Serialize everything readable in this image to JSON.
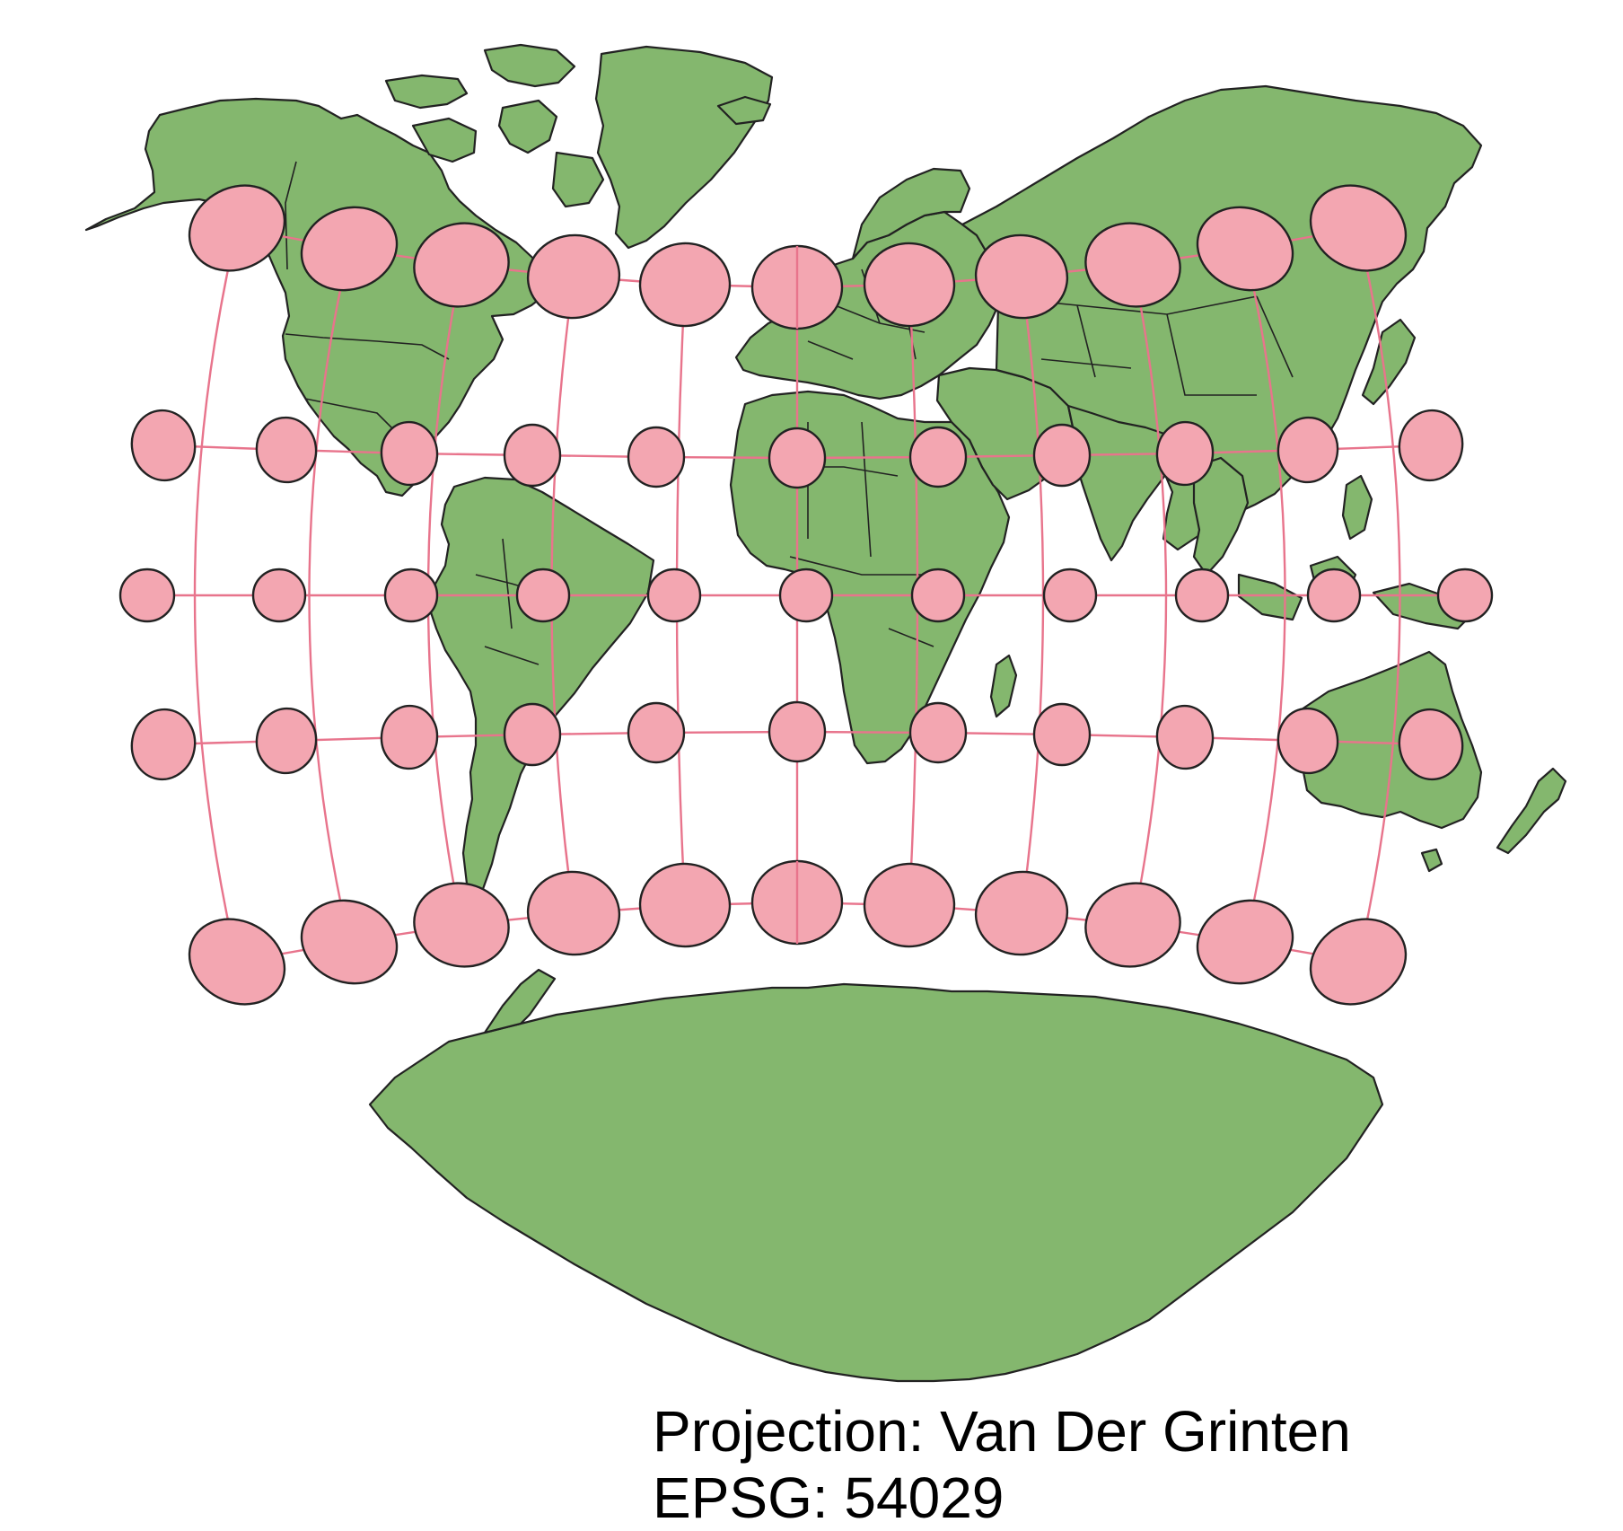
{
  "map": {
    "caption_line1": "Projection: Van Der Grinten",
    "caption_line2": "EPSG: 54029",
    "colors": {
      "land": "#84b76e",
      "coastline": "#222222",
      "indicatrix_fill": "#f3a6b1",
      "graticule": "#e8748c",
      "background": "#ffffff"
    },
    "graticule": {
      "meridians_deg": [
        -165,
        -135,
        -105,
        -75,
        -45,
        -15,
        15,
        45,
        75,
        105,
        135,
        165
      ],
      "parallels_deg": [
        -60,
        -30,
        0,
        30,
        60
      ]
    }
  }
}
